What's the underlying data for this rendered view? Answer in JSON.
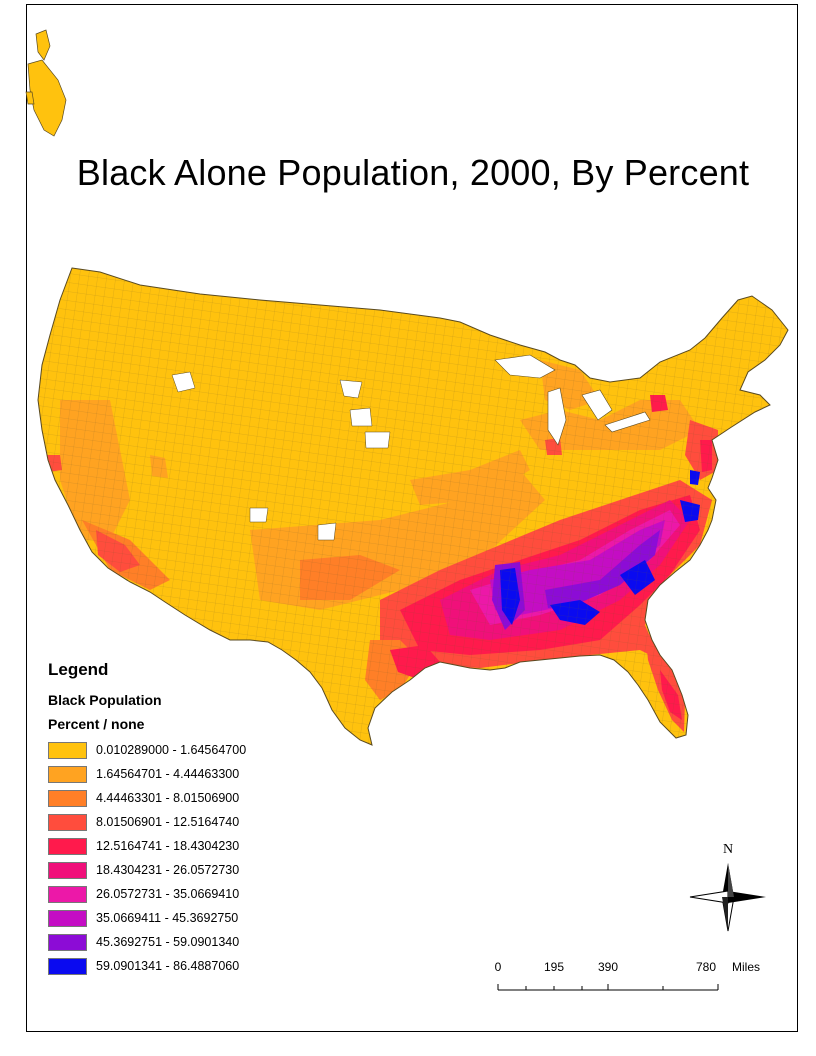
{
  "title": "Black Alone Population, 2000, By Percent",
  "legend": {
    "heading": "Legend",
    "layer": "Black Population",
    "field": "Percent / none",
    "classes": [
      {
        "label": "0.010289000 - 1.64564700",
        "color": "#FFC20E"
      },
      {
        "label": "1.64564701 - 4.44463300",
        "color": "#FFA321"
      },
      {
        "label": "4.44463301 - 8.01506900",
        "color": "#FF7F27"
      },
      {
        "label": "8.01506901 - 12.5164740",
        "color": "#FF4D3D"
      },
      {
        "label": "12.5164741 - 18.4304230",
        "color": "#FF1A4C"
      },
      {
        "label": "18.4304231 - 26.0572730",
        "color": "#F0107A"
      },
      {
        "label": "26.0572731 - 35.0669410",
        "color": "#EC18A8"
      },
      {
        "label": "35.0669411 - 45.3692750",
        "color": "#C40DC4"
      },
      {
        "label": "45.3692751 - 59.0901340",
        "color": "#8C0CD6"
      },
      {
        "label": "59.0901341 - 86.4887060",
        "color": "#0A0AF0"
      }
    ]
  },
  "north_arrow": {
    "letter": "N"
  },
  "scalebar": {
    "ticks": [
      "0",
      "195",
      "390",
      "780"
    ],
    "units": "Miles"
  }
}
